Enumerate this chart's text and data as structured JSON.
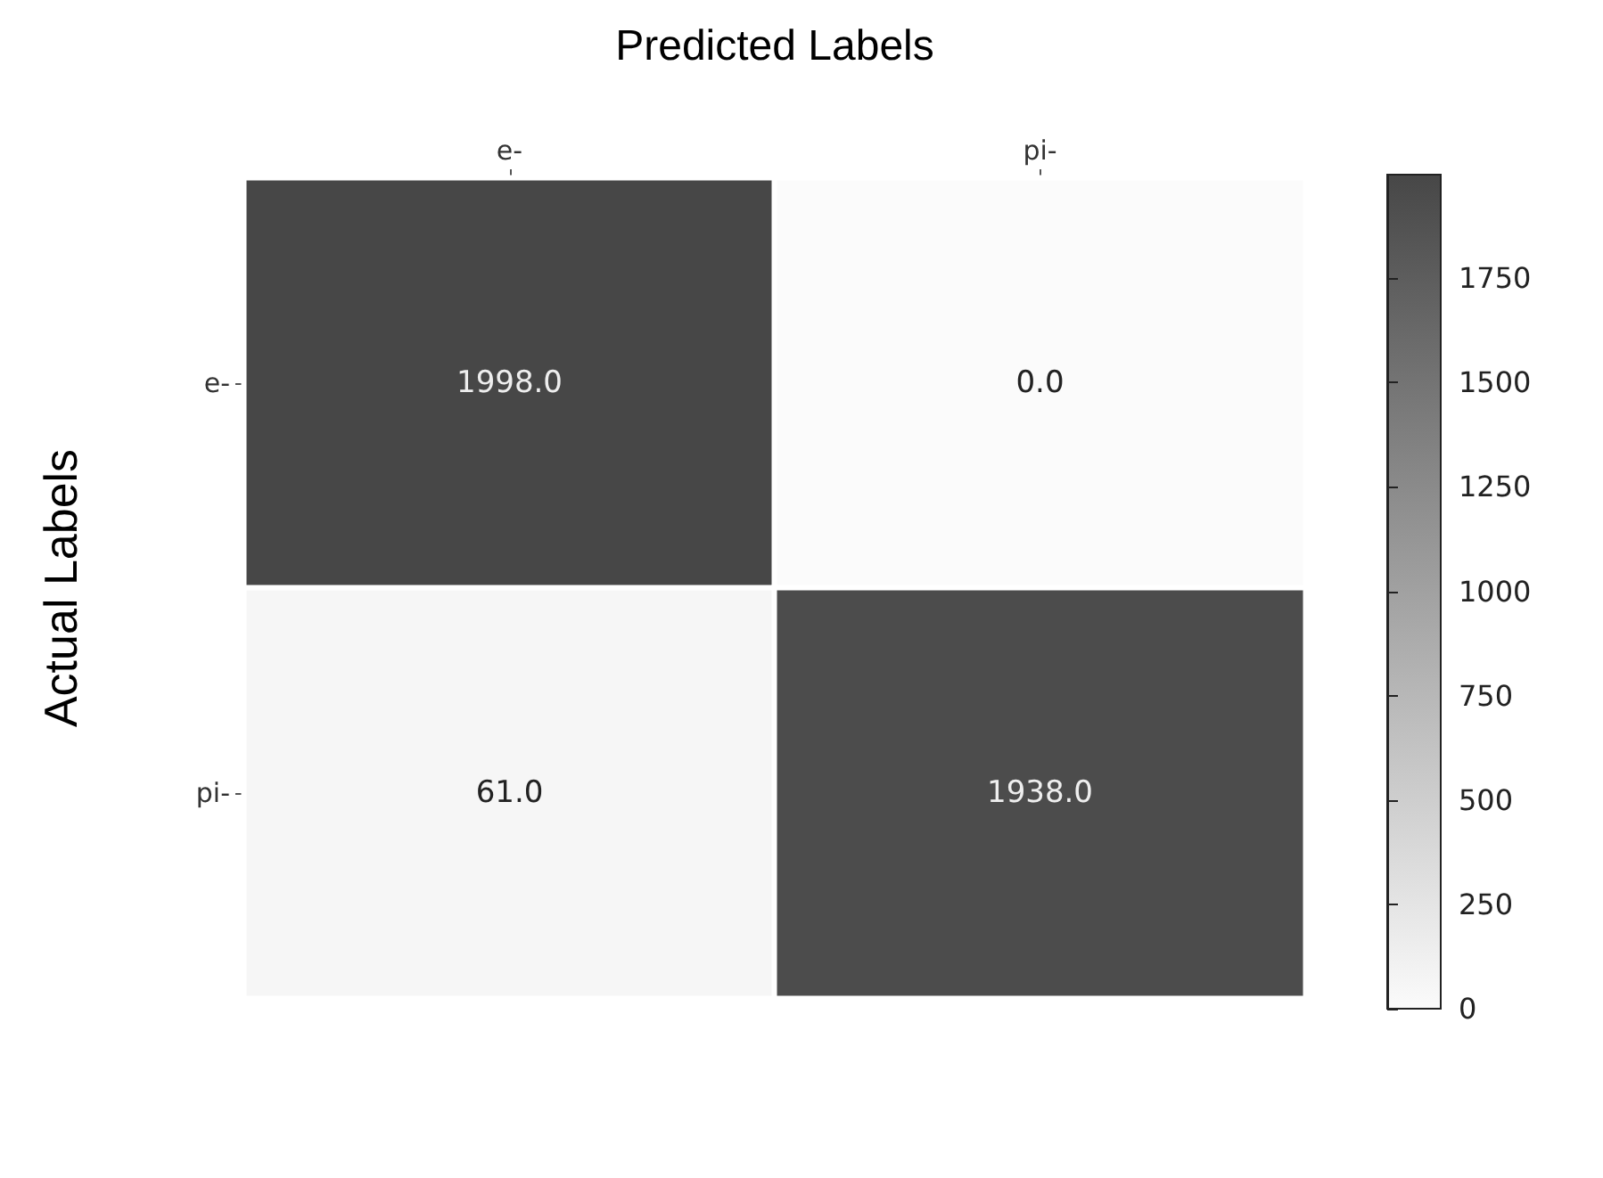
{
  "chart_data": {
    "type": "heatmap",
    "xlabel": "Predicted Labels",
    "ylabel": "Actual Labels",
    "categories": [
      "e-",
      "pi-"
    ],
    "y_categories": [
      "e-",
      "pi-"
    ],
    "cells": [
      [
        1998,
        0
      ],
      [
        61,
        1938
      ]
    ],
    "cell_labels": [
      [
        "1998.0",
        "0.0"
      ],
      [
        "61.0",
        "1938.0"
      ]
    ],
    "clim": [
      0,
      1998
    ],
    "cticks": [
      0,
      250,
      500,
      750,
      1000,
      1250,
      1500,
      1750
    ]
  }
}
